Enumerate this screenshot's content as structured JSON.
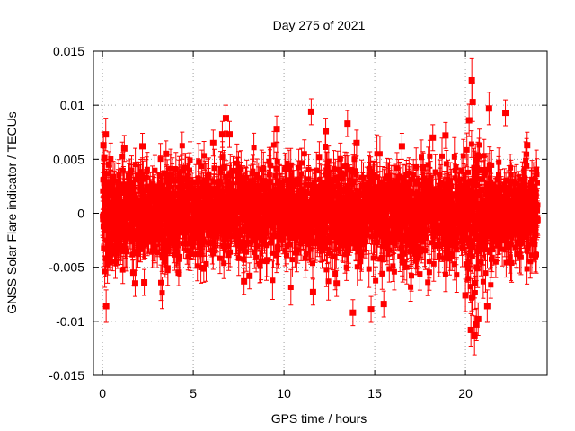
{
  "chart_data": {
    "type": "scatter",
    "title": "Day 275 of 2021",
    "xlabel": "GPS time / hours",
    "ylabel": "GNSS Solar Flare indicator / TECUs",
    "xlim": [
      -0.5,
      24.5
    ],
    "ylim": [
      -0.015,
      0.015
    ],
    "xticks": [
      0,
      5,
      10,
      15,
      20
    ],
    "xtick_labels": [
      "0",
      "5",
      "10",
      "15",
      "20"
    ],
    "yticks": [
      -0.015,
      -0.01,
      -0.005,
      0,
      0.005,
      0.01,
      0.015
    ],
    "ytick_labels": [
      "-0.015",
      "-0.01",
      "-0.005",
      "0",
      "0.005",
      "0.01",
      "0.015"
    ],
    "grid": true,
    "legend": "none",
    "series": [
      {
        "marker": "filled-square",
        "error_bars": true,
        "color": "#ff0000",
        "x_range": [
          0,
          24
        ],
        "x_step": 0.0083,
        "points": [
          {
            "x": 0.05,
            "y": 0.0063,
            "err": 0.0012
          },
          {
            "x": 0.1,
            "y": 0.0051,
            "err": 0.0012
          },
          {
            "x": 0.18,
            "y": 0.0073,
            "err": 0.0015
          },
          {
            "x": 0.2,
            "y": -0.0086,
            "err": 0.0015
          },
          {
            "x": 0.3,
            "y": -0.0045,
            "err": 0.0012
          },
          {
            "x": 0.35,
            "y": 0.0045,
            "err": 0.0012
          },
          {
            "x": 1.2,
            "y": 0.006,
            "err": 0.0012
          },
          {
            "x": 1.7,
            "y": -0.0055,
            "err": 0.0012
          },
          {
            "x": 1.8,
            "y": -0.0065,
            "err": 0.0012
          },
          {
            "x": 2.2,
            "y": 0.0062,
            "err": 0.0012
          },
          {
            "x": 2.3,
            "y": -0.0064,
            "err": 0.0012
          },
          {
            "x": 3.5,
            "y": 0.0055,
            "err": 0.0012
          },
          {
            "x": 4.2,
            "y": -0.0055,
            "err": 0.0012
          },
          {
            "x": 6.1,
            "y": 0.0065,
            "err": 0.0012
          },
          {
            "x": 6.6,
            "y": 0.0073,
            "err": 0.0012
          },
          {
            "x": 6.8,
            "y": 0.0088,
            "err": 0.0012
          },
          {
            "x": 7.0,
            "y": 0.0073,
            "err": 0.0012
          },
          {
            "x": 7.8,
            "y": -0.0063,
            "err": 0.0012
          },
          {
            "x": 8.1,
            "y": -0.0058,
            "err": 0.0012
          },
          {
            "x": 9.6,
            "y": 0.0078,
            "err": 0.0012
          },
          {
            "x": 11.5,
            "y": 0.0094,
            "err": 0.0012
          },
          {
            "x": 11.6,
            "y": -0.0073,
            "err": 0.0012
          },
          {
            "x": 12.3,
            "y": 0.0076,
            "err": 0.0012
          },
          {
            "x": 12.9,
            "y": -0.0065,
            "err": 0.0012
          },
          {
            "x": 13.5,
            "y": 0.0083,
            "err": 0.0012
          },
          {
            "x": 13.8,
            "y": -0.0092,
            "err": 0.0012
          },
          {
            "x": 14.0,
            "y": 0.0065,
            "err": 0.0012
          },
          {
            "x": 14.8,
            "y": -0.0089,
            "err": 0.0012
          },
          {
            "x": 15.5,
            "y": -0.0084,
            "err": 0.0012
          },
          {
            "x": 16.5,
            "y": 0.0062,
            "err": 0.0012
          },
          {
            "x": 18.2,
            "y": 0.007,
            "err": 0.0012
          },
          {
            "x": 18.9,
            "y": 0.0072,
            "err": 0.0012
          },
          {
            "x": 20.0,
            "y": -0.0076,
            "err": 0.0015
          },
          {
            "x": 20.2,
            "y": 0.0086,
            "err": 0.0015
          },
          {
            "x": 20.3,
            "y": -0.0108,
            "err": 0.0015
          },
          {
            "x": 20.35,
            "y": 0.0123,
            "err": 0.002
          },
          {
            "x": 20.4,
            "y": 0.0103,
            "err": 0.0018
          },
          {
            "x": 20.5,
            "y": -0.0113,
            "err": 0.0018
          },
          {
            "x": 20.6,
            "y": -0.0103,
            "err": 0.0015
          },
          {
            "x": 20.7,
            "y": -0.0098,
            "err": 0.0015
          },
          {
            "x": 21.2,
            "y": -0.0086,
            "err": 0.0015
          },
          {
            "x": 21.3,
            "y": 0.0097,
            "err": 0.0015
          },
          {
            "x": 22.2,
            "y": 0.0093,
            "err": 0.0012
          },
          {
            "x": 23.4,
            "y": 0.0063,
            "err": 0.0012
          }
        ]
      }
    ]
  }
}
